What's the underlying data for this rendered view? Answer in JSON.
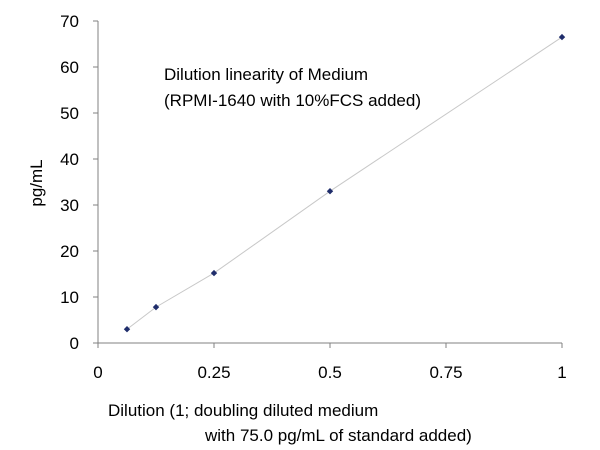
{
  "chart_data": {
    "type": "scatter",
    "title": "",
    "annotation": [
      "Dilution linearity of Medium",
      "(RPMI-1640 with 10%FCS added)"
    ],
    "xlabel": [
      "Dilution (1; doubling diluted medium",
      "with 75.0 pg/mL of standard added)"
    ],
    "ylabel": "pg/mL",
    "xlim": [
      0,
      1
    ],
    "ylim": [
      0,
      70
    ],
    "x_ticks": [
      0,
      0.25,
      0.5,
      0.75,
      1
    ],
    "x_tick_labels": [
      "0",
      "0.25",
      "0.5",
      "0.75",
      "1"
    ],
    "y_ticks": [
      0,
      10,
      20,
      30,
      40,
      50,
      60,
      70
    ],
    "y_tick_labels": [
      "0",
      "10",
      "20",
      "30",
      "40",
      "50",
      "60",
      "70"
    ],
    "grid": false,
    "trendline": true,
    "series": [
      {
        "x": [
          0.0625,
          0.125,
          0.25,
          0.5,
          1
        ],
        "y": [
          3.0,
          7.8,
          15.2,
          33.0,
          66.5
        ],
        "color": "#1f2d6b"
      }
    ],
    "colors": {
      "marker": "#1f2d6b",
      "trendline": "#c8c8c8",
      "axis": "#808080"
    }
  }
}
